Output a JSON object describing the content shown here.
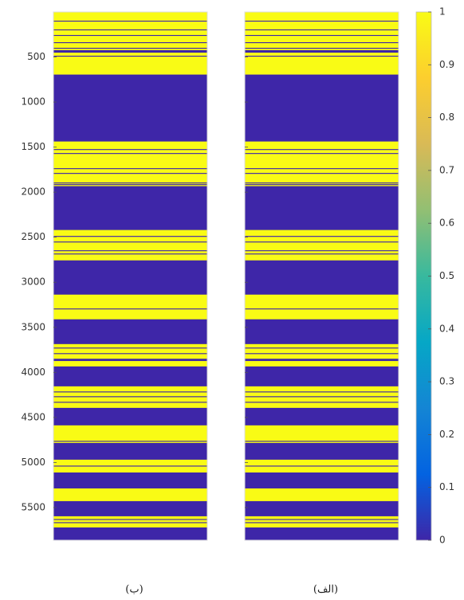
{
  "chart_data": {
    "type": "heatmap",
    "ylim": [
      0,
      5863
    ],
    "yreverse": true,
    "yticks": [
      500,
      1000,
      1500,
      2000,
      2500,
      3000,
      3500,
      4000,
      4500,
      5000,
      5500
    ],
    "panels": [
      {
        "label": "(ب)",
        "show_yticklabels": true,
        "runs": [
          [
            0,
            97,
            1
          ],
          [
            97,
            107,
            0
          ],
          [
            107,
            194,
            1
          ],
          [
            194,
            204,
            0
          ],
          [
            204,
            256,
            1
          ],
          [
            256,
            266,
            0
          ],
          [
            266,
            336,
            1
          ],
          [
            336,
            346,
            0
          ],
          [
            346,
            398,
            1
          ],
          [
            398,
            408,
            0
          ],
          [
            408,
            424,
            1
          ],
          [
            424,
            452,
            0
          ],
          [
            452,
            486,
            1
          ],
          [
            486,
            496,
            0
          ],
          [
            496,
            695,
            1
          ],
          [
            695,
            1438,
            0
          ],
          [
            1438,
            1522,
            1
          ],
          [
            1522,
            1532,
            0
          ],
          [
            1532,
            1566,
            1
          ],
          [
            1566,
            1576,
            0
          ],
          [
            1576,
            1734,
            1
          ],
          [
            1734,
            1744,
            0
          ],
          [
            1744,
            1787,
            1
          ],
          [
            1787,
            1797,
            0
          ],
          [
            1797,
            1893,
            1
          ],
          [
            1893,
            1903,
            0
          ],
          [
            1903,
            1911,
            1
          ],
          [
            1911,
            1921,
            0
          ],
          [
            1921,
            1933,
            1
          ],
          [
            1933,
            2420,
            0
          ],
          [
            2420,
            2486,
            1
          ],
          [
            2486,
            2496,
            0
          ],
          [
            2496,
            2548,
            1
          ],
          [
            2548,
            2558,
            0
          ],
          [
            2558,
            2645,
            1
          ],
          [
            2645,
            2655,
            0
          ],
          [
            2655,
            2681,
            1
          ],
          [
            2681,
            2691,
            0
          ],
          [
            2691,
            2757,
            1
          ],
          [
            2757,
            3137,
            0
          ],
          [
            3137,
            3291,
            1
          ],
          [
            3291,
            3301,
            0
          ],
          [
            3301,
            3411,
            1
          ],
          [
            3411,
            3686,
            0
          ],
          [
            3686,
            3725,
            1
          ],
          [
            3725,
            3735,
            0
          ],
          [
            3735,
            3787,
            1
          ],
          [
            3787,
            3797,
            0
          ],
          [
            3797,
            3849,
            1
          ],
          [
            3849,
            3874,
            0
          ],
          [
            3874,
            3934,
            1
          ],
          [
            3934,
            4155,
            0
          ],
          [
            4155,
            4212,
            1
          ],
          [
            4212,
            4222,
            0
          ],
          [
            4222,
            4265,
            1
          ],
          [
            4265,
            4275,
            0
          ],
          [
            4275,
            4327,
            1
          ],
          [
            4327,
            4337,
            0
          ],
          [
            4337,
            4394,
            1
          ],
          [
            4394,
            4588,
            0
          ],
          [
            4588,
            4760,
            1
          ],
          [
            4760,
            4770,
            0
          ],
          [
            4770,
            4783,
            1
          ],
          [
            4783,
            4969,
            0
          ],
          [
            4969,
            5035,
            1
          ],
          [
            5035,
            5045,
            0
          ],
          [
            5045,
            5111,
            1
          ],
          [
            5111,
            5288,
            0
          ],
          [
            5288,
            5429,
            1
          ],
          [
            5429,
            5597,
            0
          ],
          [
            5597,
            5628,
            1
          ],
          [
            5628,
            5638,
            0
          ],
          [
            5638,
            5663,
            1
          ],
          [
            5663,
            5673,
            0
          ],
          [
            5673,
            5721,
            1
          ],
          [
            5721,
            5863,
            0
          ]
        ]
      },
      {
        "label": "(الف)",
        "show_yticklabels": false,
        "runs": [
          [
            0,
            97,
            1
          ],
          [
            97,
            107,
            0
          ],
          [
            107,
            194,
            1
          ],
          [
            194,
            204,
            0
          ],
          [
            204,
            256,
            1
          ],
          [
            256,
            266,
            0
          ],
          [
            266,
            336,
            1
          ],
          [
            336,
            346,
            0
          ],
          [
            346,
            398,
            1
          ],
          [
            398,
            408,
            0
          ],
          [
            408,
            424,
            1
          ],
          [
            424,
            452,
            0
          ],
          [
            452,
            486,
            1
          ],
          [
            486,
            496,
            0
          ],
          [
            496,
            695,
            1
          ],
          [
            695,
            1438,
            0
          ],
          [
            1438,
            1522,
            1
          ],
          [
            1522,
            1532,
            0
          ],
          [
            1532,
            1566,
            1
          ],
          [
            1566,
            1576,
            0
          ],
          [
            1576,
            1734,
            1
          ],
          [
            1734,
            1744,
            0
          ],
          [
            1744,
            1787,
            1
          ],
          [
            1787,
            1797,
            0
          ],
          [
            1797,
            1893,
            1
          ],
          [
            1893,
            1903,
            0
          ],
          [
            1903,
            1911,
            1
          ],
          [
            1911,
            1921,
            0
          ],
          [
            1921,
            1933,
            1
          ],
          [
            1933,
            2420,
            0
          ],
          [
            2420,
            2486,
            1
          ],
          [
            2486,
            2496,
            0
          ],
          [
            2496,
            2548,
            1
          ],
          [
            2548,
            2558,
            0
          ],
          [
            2558,
            2645,
            1
          ],
          [
            2645,
            2655,
            0
          ],
          [
            2655,
            2681,
            1
          ],
          [
            2681,
            2691,
            0
          ],
          [
            2691,
            2757,
            1
          ],
          [
            2757,
            3137,
            0
          ],
          [
            3137,
            3291,
            1
          ],
          [
            3291,
            3301,
            0
          ],
          [
            3301,
            3411,
            1
          ],
          [
            3411,
            3686,
            0
          ],
          [
            3686,
            3725,
            1
          ],
          [
            3725,
            3735,
            0
          ],
          [
            3735,
            3787,
            1
          ],
          [
            3787,
            3797,
            0
          ],
          [
            3797,
            3849,
            1
          ],
          [
            3849,
            3874,
            0
          ],
          [
            3874,
            3934,
            1
          ],
          [
            3934,
            4155,
            0
          ],
          [
            4155,
            4212,
            1
          ],
          [
            4212,
            4222,
            0
          ],
          [
            4222,
            4265,
            1
          ],
          [
            4265,
            4275,
            0
          ],
          [
            4275,
            4327,
            1
          ],
          [
            4327,
            4337,
            0
          ],
          [
            4337,
            4394,
            1
          ],
          [
            4394,
            4588,
            0
          ],
          [
            4588,
            4760,
            1
          ],
          [
            4760,
            4770,
            0
          ],
          [
            4770,
            4783,
            1
          ],
          [
            4783,
            4969,
            0
          ],
          [
            4969,
            5035,
            1
          ],
          [
            5035,
            5045,
            0
          ],
          [
            5045,
            5111,
            1
          ],
          [
            5111,
            5288,
            0
          ],
          [
            5288,
            5429,
            1
          ],
          [
            5429,
            5597,
            0
          ],
          [
            5597,
            5628,
            1
          ],
          [
            5628,
            5638,
            0
          ],
          [
            5638,
            5663,
            1
          ],
          [
            5663,
            5673,
            0
          ],
          [
            5673,
            5721,
            1
          ],
          [
            5721,
            5863,
            0
          ]
        ]
      }
    ],
    "colorbar": {
      "lim": [
        0,
        1
      ],
      "ticks": [
        0,
        0.1,
        0.2,
        0.3,
        0.4,
        0.5,
        0.6,
        0.7,
        0.8,
        0.9,
        1
      ],
      "colormap": [
        "#3e26a8",
        "#0363e1",
        "#1485d4",
        "#06a7c6",
        "#38b99e",
        "#92bf73",
        "#d9ba56",
        "#fcce2e",
        "#f9fb15"
      ]
    }
  }
}
